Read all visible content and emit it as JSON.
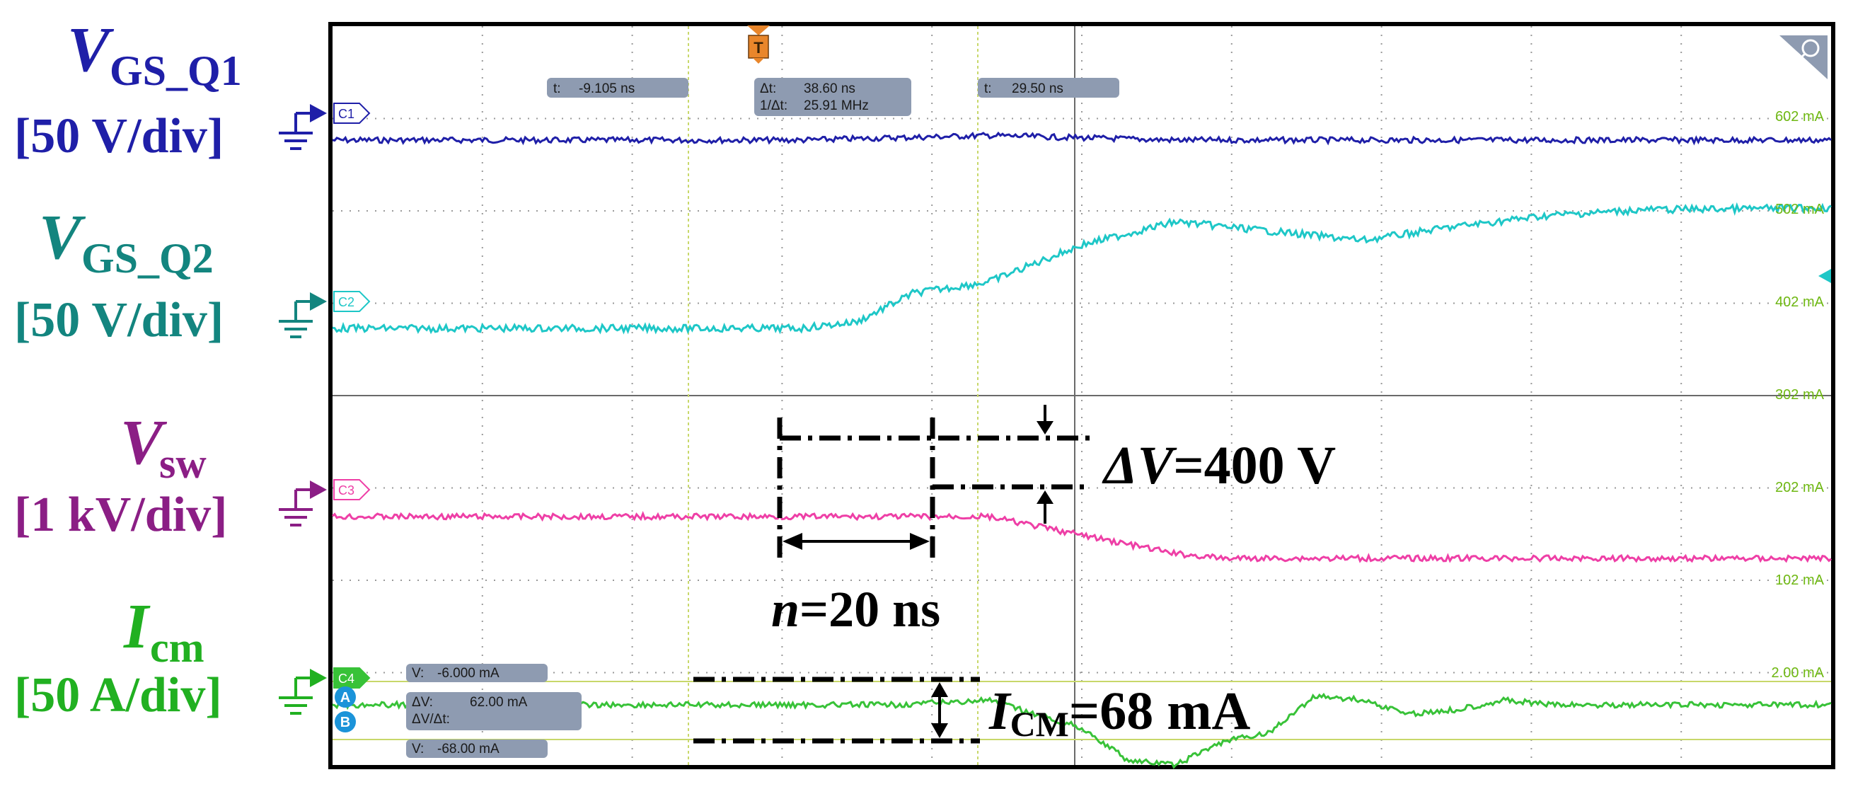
{
  "channels": [
    {
      "id": "C1",
      "name_main": "V",
      "name_sub": "GS_Q1",
      "scale": "[50 V/div]",
      "color": "#1f1fa8",
      "marker_color": "#1f1fa8"
    },
    {
      "id": "C2",
      "name_main": "V",
      "name_sub": "GS_Q2",
      "scale": "[50 V/div]",
      "color": "#13857f",
      "marker_color": "#1ec7c7"
    },
    {
      "id": "C3",
      "name_main": "V",
      "name_sub": "sw",
      "scale": "[1 kV/div]",
      "color": "#8b1e85",
      "marker_color": "#ee3fa6"
    },
    {
      "id": "C4",
      "name_main": "I",
      "name_sub": "cm",
      "scale": "[50 A/div]",
      "color": "#21b021",
      "marker_color": "#38c238"
    }
  ],
  "cursor_readouts": {
    "t1": {
      "label": "t:",
      "value": "-9.105 ns"
    },
    "dt": {
      "label": "Δt:",
      "value": "38.60 ns",
      "label2": "1/Δt:",
      "value2": "25.91 MHz"
    },
    "t2": {
      "label": "t:",
      "value": "29.50 ns"
    },
    "v1": {
      "label": "V:",
      "value": "-6.000 mA"
    },
    "dv": {
      "label": "ΔV:",
      "value": "62.00 mA",
      "label2": "ΔV/Δt:",
      "value2": ""
    },
    "v2": {
      "label": "V:",
      "value": "-68.00 mA"
    }
  },
  "trigger_label": "T",
  "cursor_badges": {
    "a": "A",
    "b": "B"
  },
  "right_scale_labels": [
    "602 mA",
    "502 mA",
    "402 mA",
    "302 mA",
    "202 mA",
    "102 mA",
    "2.00 mA"
  ],
  "annotations": {
    "delta_v": {
      "main": "ΔV",
      "rest": "=400 V"
    },
    "n": {
      "main": "n",
      "rest": "=20 ns"
    },
    "icm": {
      "main": "I",
      "sub": "CM",
      "rest": "=68 mA"
    }
  },
  "colors": {
    "grid_dot": "#9a9a9a",
    "cursor": "#c8d86a",
    "readout_bg": "#8e9bb1",
    "right_scale": "#6fb813",
    "trigger": "#e9862b",
    "cursor_badge": "#1b93d9"
  },
  "chart_data": {
    "type": "line",
    "x_unit": "ns",
    "x_range": [
      -70,
      90
    ],
    "x_divisions": 10,
    "trigger_time_ns": 0,
    "cursor_t_ns": [
      -9.105,
      29.5
    ],
    "series": [
      {
        "name": "V_GS_Q1",
        "channel": "C1",
        "scale": "50 V/div",
        "x": [
          -70,
          -40,
          -20,
          0,
          20,
          40,
          60,
          90
        ],
        "y_div": [
          0,
          0,
          0,
          0.05,
          0,
          0,
          0,
          0
        ]
      },
      {
        "name": "V_GS_Q2",
        "channel": "C2",
        "scale": "50 V/div",
        "x": [
          -70,
          -40,
          -20,
          -14,
          -8,
          0,
          10,
          20,
          30,
          40,
          50,
          60,
          70,
          90
        ],
        "y_div": [
          0,
          0,
          0,
          0.07,
          0.38,
          0.5,
          0.9,
          1.15,
          1.05,
          0.95,
          1.1,
          1.22,
          1.28,
          1.3
        ]
      },
      {
        "name": "V_sw",
        "channel": "C3",
        "scale": "1 kV/div",
        "x": [
          -70,
          -20,
          0,
          5,
          10,
          15,
          20,
          25,
          30,
          90
        ],
        "y_div": [
          0,
          0,
          0,
          -0.1,
          -0.2,
          -0.3,
          -0.4,
          -0.45,
          -0.45,
          -0.45
        ]
      },
      {
        "name": "I_cm",
        "channel": "C4",
        "scale": "50 A/div",
        "x": [
          -70,
          -20,
          -10,
          0,
          10,
          15,
          20,
          25,
          30,
          35,
          40,
          45,
          50,
          55,
          60,
          70,
          90
        ],
        "y_div": [
          0,
          0,
          0,
          0.05,
          -0.25,
          -0.6,
          -0.65,
          -0.4,
          -0.3,
          0.1,
          0.05,
          -0.1,
          -0.05,
          0.05,
          0,
          0,
          0
        ]
      }
    ]
  }
}
